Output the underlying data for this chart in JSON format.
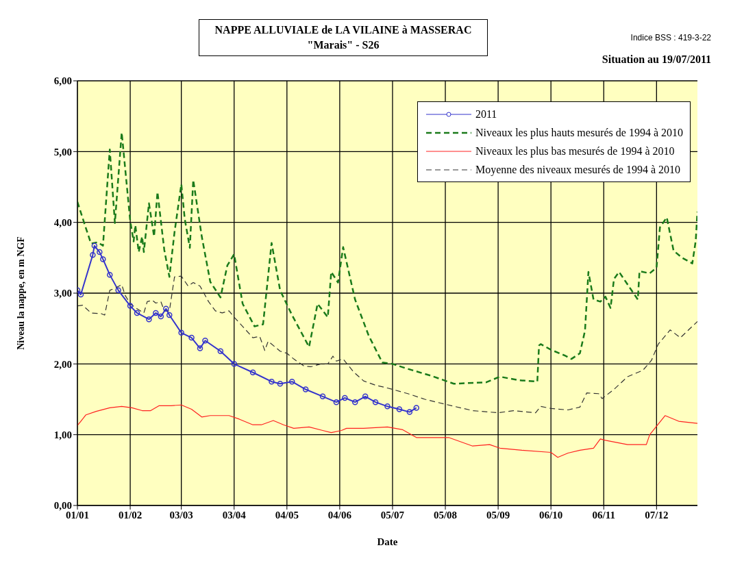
{
  "chart_data": {
    "type": "line",
    "title": "NAPPE ALLUVIALE de LA VILAINE à MASSERAC",
    "subtitle": "\"Marais\" - S26",
    "xlabel": "Date",
    "ylabel": "Niveau la nappe, en m NGF",
    "annotations": [
      "Indice BSS : 419-3-22",
      "Situation au 19/07/2011"
    ],
    "xlim": [
      "--01-01",
      "--12-31"
    ],
    "xticks": [
      {
        "value": "--01-01",
        "label": "01/01"
      },
      {
        "value": "--02-01",
        "label": "01/02"
      },
      {
        "value": "--03-03",
        "label": "03/03"
      },
      {
        "value": "--04-03",
        "label": "03/04"
      },
      {
        "value": "--05-04",
        "label": "04/05"
      },
      {
        "value": "--06-04",
        "label": "04/06"
      },
      {
        "value": "--07-05",
        "label": "05/07"
      },
      {
        "value": "--08-05",
        "label": "05/08"
      },
      {
        "value": "--09-05",
        "label": "05/09"
      },
      {
        "value": "--10-06",
        "label": "06/10"
      },
      {
        "value": "--11-06",
        "label": "06/11"
      },
      {
        "value": "--12-07",
        "label": "07/12"
      }
    ],
    "ylim": [
      0,
      6
    ],
    "yticks": [
      {
        "value": 0,
        "label": "0,00"
      },
      {
        "value": 1,
        "label": "1,00"
      },
      {
        "value": 2,
        "label": "2,00"
      },
      {
        "value": 3,
        "label": "3,00"
      },
      {
        "value": 4,
        "label": "4,00"
      },
      {
        "value": 5,
        "label": "5,00"
      },
      {
        "value": 6,
        "label": "6,00"
      }
    ],
    "grid": true,
    "legend": "top right",
    "series": [
      {
        "name": "2011",
        "color": "#3333cc",
        "marker": "circle",
        "line_style": "solid",
        "x": [
          "--01-01",
          "--01-03",
          "--01-10",
          "--01-11",
          "--01-14",
          "--01-16",
          "--01-20",
          "--01-25",
          "--02-01",
          "--02-05",
          "--02-12",
          "--02-16",
          "--02-19",
          "--02-22",
          "--02-24",
          "--03-03",
          "--03-09",
          "--03-14",
          "--03-17",
          "--03-26",
          "--04-03",
          "--04-14",
          "--04-25",
          "--04-30",
          "--05-07",
          "--05-15",
          "--05-25",
          "--06-02",
          "--06-07",
          "--06-13",
          "--06-19",
          "--06-25",
          "--07-02",
          "--07-09",
          "--07-15",
          "--07-19"
        ],
        "values": [
          3.04,
          2.98,
          3.54,
          3.67,
          3.58,
          3.48,
          3.26,
          3.04,
          2.82,
          2.72,
          2.63,
          2.72,
          2.67,
          2.78,
          2.69,
          2.44,
          2.37,
          2.22,
          2.33,
          2.18,
          2.0,
          1.88,
          1.75,
          1.72,
          1.75,
          1.64,
          1.54,
          1.46,
          1.52,
          1.46,
          1.54,
          1.46,
          1.4,
          1.36,
          1.32,
          1.38
        ]
      },
      {
        "name": "Niveaux les plus hauts mesurés de 1994 à 2010",
        "color": "#1a7a1a",
        "marker": "none",
        "line_style": "dashed",
        "x": [
          "--01-01",
          "--01-05",
          "--01-09",
          "--01-13",
          "--01-16",
          "--01-20",
          "--01-23",
          "--01-27",
          "--02-01",
          "--02-03",
          "--02-04",
          "--02-06",
          "--02-08",
          "--02-09",
          "--02-12",
          "--02-15",
          "--02-17",
          "--02-21",
          "--02-24",
          "--02-27",
          "--03-03",
          "--03-05",
          "--03-08",
          "--03-10",
          "--03-15",
          "--03-20",
          "--03-26",
          "--03-30",
          "--04-03",
          "--04-08",
          "--04-15",
          "--04-20",
          "--04-25",
          "--04-30",
          "--05-07",
          "--05-17",
          "--05-22",
          "--05-28",
          "--05-30",
          "--06-03",
          "--06-06",
          "--06-13",
          "--06-21",
          "--06-29",
          "--07-05",
          "--07-14",
          "--07-28",
          "--08-10",
          "--08-29",
          "--09-06",
          "--09-17",
          "--09-28",
          "--09-29",
          "--09-30",
          "--10-06",
          "--10-14",
          "--10-18",
          "--10-23",
          "--10-26",
          "--10-28",
          "--10-31",
          "--11-04",
          "--11-07",
          "--11-10",
          "--11-12",
          "--11-15",
          "--11-24",
          "--11-26",
          "--11-27",
          "--12-03",
          "--12-07",
          "--12-09",
          "--12-13",
          "--12-17",
          "--12-22",
          "--12-28",
          "--12-30",
          "--12-31"
        ],
        "values": [
          4.29,
          3.99,
          3.7,
          3.72,
          3.67,
          5.03,
          3.99,
          5.27,
          4.02,
          3.73,
          3.96,
          3.58,
          3.8,
          3.58,
          4.27,
          3.8,
          4.43,
          3.61,
          3.23,
          3.86,
          4.54,
          4.05,
          3.64,
          4.6,
          3.8,
          3.16,
          2.94,
          3.39,
          3.55,
          2.85,
          2.53,
          2.56,
          3.71,
          3.04,
          2.69,
          2.24,
          2.85,
          2.66,
          3.3,
          3.15,
          3.65,
          2.91,
          2.4,
          2.02,
          2.0,
          1.93,
          1.83,
          1.72,
          1.74,
          1.82,
          1.77,
          1.75,
          2.26,
          2.28,
          2.2,
          2.12,
          2.07,
          2.15,
          2.47,
          3.3,
          2.91,
          2.88,
          2.95,
          2.79,
          3.2,
          3.3,
          2.98,
          2.91,
          3.31,
          3.28,
          3.36,
          3.93,
          4.07,
          3.6,
          3.5,
          3.42,
          3.74,
          4.15
        ]
      },
      {
        "name": "Niveaux les plus bas mesurés de 1994 à 2010",
        "color": "#ff2020",
        "marker": "none",
        "line_style": "solid",
        "x": [
          "--01-01",
          "--01-03",
          "--01-06",
          "--01-12",
          "--01-20",
          "--01-27",
          "--02-02",
          "--02-08",
          "--02-13",
          "--02-18",
          "--02-25",
          "--03-03",
          "--03-09",
          "--03-15",
          "--03-20",
          "--03-31",
          "--04-06",
          "--04-14",
          "--04-19",
          "--04-26",
          "--05-02",
          "--05-08",
          "--05-17",
          "--05-25",
          "--05-30",
          "--06-05",
          "--06-08",
          "--06-18",
          "--07-02",
          "--07-11",
          "--07-19",
          "--08-07",
          "--08-21",
          "--08-31",
          "--09-06",
          "--09-19",
          "--10-06",
          "--10-10",
          "--10-16",
          "--10-23",
          "--10-31",
          "--11-04",
          "--11-07",
          "--11-20",
          "--12-01",
          "--12-03",
          "--12-12",
          "--12-20",
          "--12-31"
        ],
        "values": [
          1.13,
          1.19,
          1.28,
          1.33,
          1.38,
          1.4,
          1.38,
          1.34,
          1.34,
          1.41,
          1.41,
          1.42,
          1.36,
          1.25,
          1.27,
          1.27,
          1.22,
          1.14,
          1.14,
          1.2,
          1.14,
          1.09,
          1.11,
          1.06,
          1.03,
          1.06,
          1.09,
          1.09,
          1.11,
          1.07,
          0.96,
          0.96,
          0.84,
          0.86,
          0.81,
          0.78,
          0.75,
          0.68,
          0.74,
          0.78,
          0.81,
          0.94,
          0.92,
          0.86,
          0.86,
          1.0,
          1.27,
          1.19,
          1.16
        ]
      },
      {
        "name": "Moyenne des niveaux mesurés de 1994 à 2010",
        "color": "#333333",
        "marker": "none",
        "line_style": "dashed",
        "x": [
          "--01-01",
          "--01-04",
          "--01-09",
          "--01-15",
          "--01-17",
          "--01-20",
          "--01-23",
          "--01-27",
          "--01-29",
          "--02-01",
          "--02-05",
          "--02-09",
          "--02-11",
          "--02-14",
          "--02-16",
          "--02-19",
          "--02-21",
          "--02-24",
          "--02-27",
          "--03-03",
          "--03-07",
          "--03-10",
          "--03-14",
          "--03-19",
          "--03-23",
          "--03-27",
          "--03-31",
          "--04-03",
          "--04-08",
          "--04-14",
          "--04-18",
          "--04-21",
          "--04-23",
          "--04-30",
          "--05-04",
          "--05-08",
          "--05-14",
          "--05-18",
          "--05-24",
          "--05-28",
          "--05-31",
          "--06-02",
          "--06-06",
          "--06-12",
          "--06-18",
          "--06-25",
          "--07-02",
          "--07-14",
          "--07-24",
          "--08-05",
          "--08-21",
          "--09-05",
          "--09-14",
          "--09-27",
          "--09-30",
          "--10-06",
          "--10-16",
          "--10-23",
          "--10-27",
          "--11-03",
          "--11-05",
          "--11-12",
          "--11-20",
          "--11-29",
          "--12-04",
          "--12-08",
          "--12-15",
          "--12-21",
          "--12-31"
        ],
        "values": [
          2.82,
          2.83,
          2.72,
          2.71,
          2.69,
          3.04,
          3.07,
          3.12,
          2.97,
          2.85,
          2.78,
          2.72,
          2.88,
          2.9,
          2.86,
          2.88,
          2.75,
          2.75,
          3.23,
          3.24,
          3.1,
          3.15,
          3.1,
          2.88,
          2.75,
          2.72,
          2.75,
          2.66,
          2.53,
          2.37,
          2.39,
          2.19,
          2.32,
          2.18,
          2.15,
          2.07,
          1.97,
          1.96,
          2.0,
          2.0,
          2.11,
          2.04,
          2.07,
          1.89,
          1.76,
          1.7,
          1.66,
          1.58,
          1.5,
          1.43,
          1.34,
          1.31,
          1.34,
          1.31,
          1.4,
          1.37,
          1.35,
          1.39,
          1.59,
          1.58,
          1.51,
          1.64,
          1.82,
          1.91,
          2.05,
          2.28,
          2.48,
          2.37,
          2.6
        ]
      }
    ]
  }
}
